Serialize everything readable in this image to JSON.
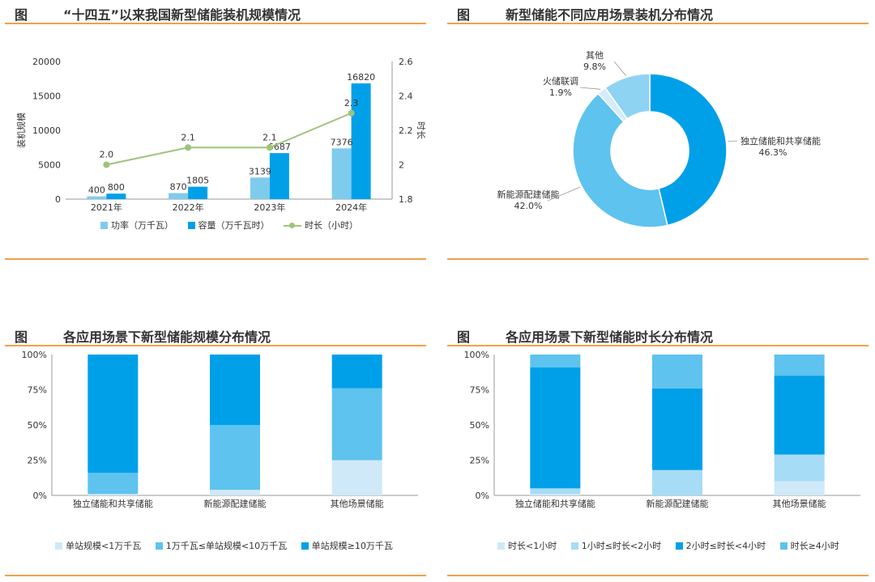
{
  "panels": {
    "p1": {
      "label": "图",
      "title": "“十四五”以来我国新型储能装机规模情况"
    },
    "p2": {
      "label": "图",
      "title": "新型储能不同应用场景装机分布情况"
    },
    "p3": {
      "label": "图",
      "title": "各应用场景下新型储能规模分布情况"
    },
    "p4": {
      "label": "图",
      "title": "各应用场景下新型储能时长分布情况"
    }
  },
  "colors": {
    "accent": "#f0a14a",
    "light_blue": "#7fcbee",
    "dark_blue": "#00a0e9",
    "mid_blue": "#5ec3ee",
    "pale_blue": "#cfe9f8",
    "green": "#9dc47b"
  },
  "chart_data": [
    {
      "type": "bar",
      "categories": [
        "2021年",
        "2022年",
        "2023年",
        "2024年"
      ],
      "series": [
        {
          "name": "功率（万千瓦）",
          "values": [
            400,
            870,
            3139,
            7376
          ]
        },
        {
          "name": "容量（万千瓦时）",
          "values": [
            800,
            1805,
            6687,
            16820
          ]
        }
      ],
      "line_series": {
        "name": "时长（小时）",
        "values": [
          2.0,
          2.1,
          2.1,
          2.3
        ],
        "labels": [
          "2.0",
          "2.1",
          "2.1",
          "2.3"
        ]
      },
      "ylabel": "装机规模",
      "y2label": "时长",
      "ylim": [
        0,
        20000
      ],
      "yticks": [
        "0",
        "5000",
        "10000",
        "15000",
        "20000"
      ],
      "y2lim": [
        1.8,
        2.6
      ],
      "y2ticks": [
        "1.8",
        "2",
        "2.2",
        "2.4",
        "2.6"
      ],
      "legend": "bottom"
    },
    {
      "type": "pie",
      "subtype": "donut",
      "slices": [
        {
          "name": "独立储能和共享储能",
          "value": 46.3,
          "label": "46.3%"
        },
        {
          "name": "新能源配建储能",
          "value": 42.0,
          "label": "42.0%"
        },
        {
          "name": "火储联调",
          "value": 1.9,
          "label": "1.9%"
        },
        {
          "name": "其他",
          "value": 9.8,
          "label": "9.8%"
        }
      ]
    },
    {
      "type": "bar",
      "subtype": "stacked-percent",
      "categories": [
        "独立储能和共享储能",
        "新能源配建储能",
        "其他场景储能"
      ],
      "series": [
        {
          "name": "单站规模<1万千瓦",
          "values": [
            1,
            4,
            25
          ]
        },
        {
          "name": "1万千瓦≤单站规模<10万千瓦",
          "values": [
            15,
            46,
            51
          ]
        },
        {
          "name": "单站规模≥10万千瓦",
          "values": [
            84,
            50,
            24
          ]
        }
      ],
      "yticks": [
        "0%",
        "25%",
        "50%",
        "75%",
        "100%"
      ],
      "ylim": [
        0,
        100
      ],
      "legend": "bottom"
    },
    {
      "type": "bar",
      "subtype": "stacked-percent",
      "categories": [
        "独立储能和共享储能",
        "新能源配建储能",
        "其他场景储能"
      ],
      "series": [
        {
          "name": "时长<1小时",
          "values": [
            1,
            0,
            10
          ]
        },
        {
          "name": "1小时≤时长<2小时",
          "values": [
            4,
            18,
            19
          ]
        },
        {
          "name": "2小时≤时长<4小时",
          "values": [
            86,
            58,
            56
          ]
        },
        {
          "name": "时长≥4小时",
          "values": [
            9,
            24,
            15
          ]
        }
      ],
      "yticks": [
        "0%",
        "25%",
        "50%",
        "75%",
        "100%"
      ],
      "ylim": [
        0,
        100
      ],
      "legend": "bottom"
    }
  ]
}
